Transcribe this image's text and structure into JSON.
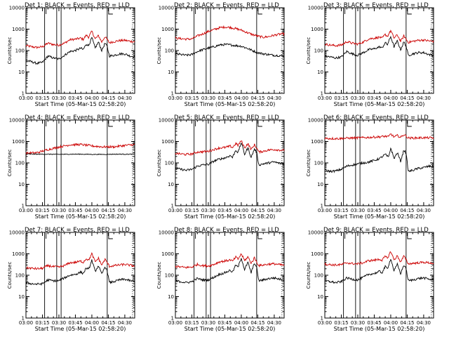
{
  "figure": {
    "xtick_labels": [
      "03:00",
      "03:15",
      "03:30",
      "03:45",
      "04:00",
      "04:15",
      "04:30"
    ],
    "ytick_labels": [
      "1",
      "10",
      "100",
      "1000",
      "10000"
    ],
    "colors": {
      "events": "#000000",
      "lld": "#cc0000"
    }
  },
  "chart_data": [
    {
      "type": "line",
      "title": "Det 1: BLACK = Events, RED = LLD",
      "xlabel": "Start Time (05-Mar-15 02:58:20)",
      "ylabel": "Counts/sec",
      "xlim": [
        "03:00",
        "04:39"
      ],
      "ylim": [
        1,
        10000
      ],
      "yscale": "log",
      "vlines": [
        "03:17",
        "03:28",
        "03:32",
        "04:14"
      ],
      "x": [
        "03:00",
        "03:05",
        "03:10",
        "03:15",
        "03:20",
        "03:25",
        "03:30",
        "03:35",
        "03:40",
        "03:45",
        "03:50",
        "03:52",
        "03:55",
        "03:57",
        "04:00",
        "04:03",
        "04:06",
        "04:09",
        "04:12",
        "04:14",
        "04:16",
        "04:20",
        "04:25",
        "04:30",
        "04:35",
        "04:39"
      ],
      "series": [
        {
          "name": "Events",
          "values": [
            35,
            30,
            25,
            28,
            55,
            45,
            40,
            60,
            90,
            100,
            130,
            110,
            200,
            170,
            400,
            130,
            250,
            100,
            220,
            150,
            55,
            60,
            70,
            70,
            55,
            50
          ]
        },
        {
          "name": "LLD",
          "values": [
            170,
            150,
            140,
            150,
            220,
            190,
            180,
            220,
            320,
            340,
            380,
            330,
            520,
            420,
            800,
            350,
            500,
            250,
            450,
            320,
            230,
            260,
            290,
            300,
            270,
            260
          ]
        }
      ]
    },
    {
      "type": "line",
      "title": "Det 2: BLACK = Events, RED = LLD",
      "xlabel": "Start Time (05-Mar-15 02:58:20)",
      "ylabel": "Counts/sec",
      "xlim": [
        "03:00",
        "04:39"
      ],
      "ylim": [
        1,
        10000
      ],
      "yscale": "log",
      "vlines": [
        "03:17",
        "03:28",
        "03:32",
        "04:14"
      ],
      "x": [
        "03:00",
        "03:05",
        "03:10",
        "03:15",
        "03:20",
        "03:25",
        "03:30",
        "03:35",
        "03:40",
        "03:45",
        "03:50",
        "03:55",
        "04:00",
        "04:05",
        "04:10",
        "04:15",
        "04:20",
        "04:25",
        "04:30",
        "04:35",
        "04:39"
      ],
      "series": [
        {
          "name": "Events",
          "values": [
            70,
            65,
            60,
            65,
            90,
            110,
            130,
            150,
            180,
            190,
            185,
            170,
            160,
            130,
            100,
            80,
            70,
            65,
            60,
            58,
            55
          ]
        },
        {
          "name": "LLD",
          "values": [
            380,
            360,
            340,
            350,
            480,
            600,
            780,
            950,
            1150,
            1250,
            1200,
            1050,
            900,
            700,
            560,
            470,
            420,
            450,
            520,
            580,
            600
          ]
        }
      ]
    },
    {
      "type": "line",
      "title": "Det 3: BLACK = Events, RED = LLD",
      "xlabel": "Start Time (05-Mar-15 02:58:20)",
      "ylabel": "Counts/sec",
      "xlim": [
        "03:00",
        "04:39"
      ],
      "ylim": [
        1,
        10000
      ],
      "yscale": "log",
      "vlines": [
        "03:17",
        "03:28",
        "03:32",
        "04:14"
      ],
      "x": [
        "03:00",
        "03:05",
        "03:10",
        "03:15",
        "03:20",
        "03:25",
        "03:30",
        "03:35",
        "03:40",
        "03:45",
        "03:50",
        "03:52",
        "03:55",
        "03:57",
        "04:00",
        "04:03",
        "04:06",
        "04:09",
        "04:12",
        "04:14",
        "04:16",
        "04:20",
        "04:25",
        "04:30",
        "04:35",
        "04:39"
      ],
      "series": [
        {
          "name": "Events",
          "values": [
            55,
            50,
            45,
            50,
            90,
            70,
            60,
            80,
            110,
            120,
            150,
            130,
            230,
            190,
            450,
            150,
            280,
            110,
            250,
            160,
            60,
            70,
            80,
            80,
            65,
            60
          ]
        },
        {
          "name": "LLD",
          "values": [
            200,
            180,
            170,
            180,
            260,
            220,
            200,
            250,
            350,
            380,
            420,
            370,
            560,
            460,
            850,
            380,
            540,
            270,
            480,
            340,
            240,
            270,
            300,
            310,
            280,
            270
          ]
        }
      ]
    },
    {
      "type": "line",
      "title": "Det 4: BLACK = Events, RED = LLD",
      "xlabel": "Start Time (05-Mar-15 02:58:20)",
      "ylabel": "Counts/sec",
      "xlim": [
        "03:00",
        "04:39"
      ],
      "ylim": [
        1,
        10000
      ],
      "yscale": "log",
      "vlines": [
        "03:17",
        "03:28",
        "03:32",
        "04:14"
      ],
      "x": [
        "03:00",
        "03:10",
        "03:20",
        "03:30",
        "03:40",
        "03:50",
        "04:00",
        "04:10",
        "04:20",
        "04:30",
        "04:39"
      ],
      "series": [
        {
          "name": "Events",
          "values": [
            260,
            255,
            255,
            250,
            255,
            255,
            250,
            250,
            255,
            255,
            255
          ]
        },
        {
          "name": "LLD",
          "values": [
            280,
            300,
            420,
            550,
            700,
            720,
            620,
            560,
            560,
            650,
            720
          ]
        }
      ]
    },
    {
      "type": "line",
      "title": "Det 5: BLACK = Events, RED = LLD",
      "xlabel": "Start Time (05-Mar-15 02:58:20)",
      "ylabel": "Counts/sec",
      "xlim": [
        "03:00",
        "04:39"
      ],
      "ylim": [
        1,
        10000
      ],
      "yscale": "log",
      "vlines": [
        "03:17",
        "03:28",
        "03:32",
        "04:14"
      ],
      "x": [
        "03:00",
        "03:05",
        "03:10",
        "03:15",
        "03:20",
        "03:25",
        "03:30",
        "03:35",
        "03:40",
        "03:45",
        "03:50",
        "03:52",
        "03:55",
        "03:57",
        "04:00",
        "04:03",
        "04:06",
        "04:09",
        "04:12",
        "04:14",
        "04:16",
        "04:20",
        "04:25",
        "04:30",
        "04:35",
        "04:39"
      ],
      "series": [
        {
          "name": "Events",
          "values": [
            55,
            50,
            45,
            50,
            70,
            80,
            85,
            120,
            150,
            170,
            220,
            180,
            400,
            300,
            900,
            250,
            500,
            180,
            450,
            300,
            80,
            90,
            100,
            110,
            95,
            90
          ]
        },
        {
          "name": "LLD",
          "values": [
            280,
            260,
            250,
            260,
            320,
            330,
            350,
            420,
            500,
            520,
            600,
            520,
            800,
            650,
            1100,
            500,
            800,
            420,
            700,
            500,
            320,
            350,
            400,
            420,
            400,
            380
          ]
        }
      ]
    },
    {
      "type": "line",
      "title": "Det 6: BLACK = Events, RED = LLD",
      "xlabel": "Start Time (05-Mar-15 02:58:20)",
      "ylabel": "Counts/sec",
      "xlim": [
        "03:00",
        "04:39"
      ],
      "ylim": [
        1,
        10000
      ],
      "yscale": "log",
      "vlines": [
        "03:17",
        "03:28",
        "03:32",
        "04:14"
      ],
      "x": [
        "03:00",
        "03:05",
        "03:10",
        "03:15",
        "03:20",
        "03:25",
        "03:30",
        "03:35",
        "03:40",
        "03:45",
        "03:50",
        "03:55",
        "03:58",
        "04:00",
        "04:03",
        "04:06",
        "04:09",
        "04:12",
        "04:14",
        "04:16",
        "04:20",
        "04:25",
        "04:30",
        "04:35",
        "04:39"
      ],
      "series": [
        {
          "name": "Events",
          "values": [
            45,
            40,
            42,
            50,
            70,
            80,
            90,
            100,
            110,
            130,
            160,
            250,
            180,
            500,
            160,
            300,
            120,
            400,
            280,
            40,
            45,
            55,
            60,
            70,
            65
          ]
        },
        {
          "name": "LLD",
          "values": [
            1400,
            1380,
            1370,
            1380,
            1420,
            1450,
            1480,
            1500,
            1550,
            1600,
            1650,
            1750,
            1650,
            2300,
            1600,
            1900,
            1550,
            2100,
            1800,
            1450,
            1450,
            1480,
            1500,
            1480,
            1450
          ]
        }
      ]
    },
    {
      "type": "line",
      "title": "Det 7: BLACK = Events, RED = LLD",
      "xlabel": "Start Time (05-Mar-15 02:58:20)",
      "ylabel": "Counts/sec",
      "xlim": [
        "03:00",
        "04:39"
      ],
      "ylim": [
        1,
        10000
      ],
      "yscale": "log",
      "vlines": [
        "03:17",
        "03:28",
        "03:32",
        "04:14"
      ],
      "x": [
        "03:00",
        "03:05",
        "03:10",
        "03:15",
        "03:20",
        "03:25",
        "03:30",
        "03:35",
        "03:40",
        "03:45",
        "03:50",
        "03:52",
        "03:55",
        "03:57",
        "04:00",
        "04:03",
        "04:06",
        "04:09",
        "04:12",
        "04:14",
        "04:16",
        "04:20",
        "04:25",
        "04:30",
        "04:35",
        "04:39"
      ],
      "series": [
        {
          "name": "Events",
          "values": [
            45,
            40,
            38,
            40,
            60,
            55,
            55,
            75,
            100,
            110,
            140,
            120,
            220,
            180,
            500,
            150,
            280,
            110,
            250,
            160,
            45,
            50,
            60,
            65,
            55,
            50
          ]
        },
        {
          "name": "LLD",
          "values": [
            220,
            210,
            200,
            210,
            280,
            250,
            240,
            280,
            380,
            400,
            450,
            400,
            600,
            500,
            1000,
            420,
            620,
            300,
            550,
            380,
            260,
            280,
            300,
            320,
            290,
            270
          ]
        }
      ]
    },
    {
      "type": "line",
      "title": "Det 8: BLACK = Events, RED = LLD",
      "xlabel": "Start Time (05-Mar-15 02:58:20)",
      "ylabel": "Counts/sec",
      "xlim": [
        "03:00",
        "04:39"
      ],
      "ylim": [
        1,
        10000
      ],
      "yscale": "log",
      "vlines": [
        "03:17",
        "03:28",
        "03:32",
        "04:14"
      ],
      "x": [
        "03:00",
        "03:05",
        "03:10",
        "03:15",
        "03:20",
        "03:25",
        "03:30",
        "03:35",
        "03:40",
        "03:45",
        "03:50",
        "03:52",
        "03:55",
        "03:57",
        "04:00",
        "04:03",
        "04:06",
        "04:09",
        "04:12",
        "04:14",
        "04:16",
        "04:20",
        "04:25",
        "04:30",
        "04:35",
        "04:39"
      ],
      "series": [
        {
          "name": "Events",
          "values": [
            55,
            50,
            45,
            50,
            70,
            60,
            60,
            80,
            110,
            130,
            170,
            140,
            300,
            230,
            650,
            180,
            400,
            130,
            380,
            220,
            55,
            60,
            70,
            75,
            65,
            60
          ]
        },
        {
          "name": "LLD",
          "values": [
            260,
            240,
            230,
            240,
            320,
            280,
            270,
            320,
            420,
            460,
            520,
            450,
            700,
            560,
            1000,
            480,
            720,
            360,
            650,
            420,
            280,
            300,
            330,
            340,
            310,
            290
          ]
        }
      ]
    },
    {
      "type": "line",
      "title": "Det 9: BLACK = Events, RED = LLD",
      "xlabel": "Start Time (05-Mar-15 02:58:20)",
      "ylabel": "Counts/sec",
      "xlim": [
        "03:00",
        "04:39"
      ],
      "ylim": [
        1,
        10000
      ],
      "yscale": "log",
      "vlines": [
        "03:17",
        "03:28",
        "03:32",
        "04:14"
      ],
      "x": [
        "03:00",
        "03:05",
        "03:10",
        "03:15",
        "03:20",
        "03:25",
        "03:30",
        "03:35",
        "03:40",
        "03:45",
        "03:50",
        "03:52",
        "03:55",
        "03:57",
        "04:00",
        "04:03",
        "04:06",
        "04:09",
        "04:12",
        "04:14",
        "04:16",
        "04:20",
        "04:25",
        "04:30",
        "04:35",
        "04:39"
      ],
      "series": [
        {
          "name": "Events",
          "values": [
            55,
            50,
            45,
            50,
            75,
            65,
            60,
            80,
            110,
            120,
            150,
            130,
            250,
            200,
            600,
            160,
            320,
            120,
            300,
            200,
            55,
            60,
            70,
            75,
            65,
            60
          ]
        },
        {
          "name": "LLD",
          "values": [
            330,
            310,
            300,
            310,
            380,
            350,
            340,
            380,
            480,
            500,
            560,
            500,
            750,
            620,
            1300,
            520,
            800,
            420,
            780,
            520,
            340,
            360,
            380,
            400,
            380,
            360
          ]
        }
      ]
    }
  ]
}
